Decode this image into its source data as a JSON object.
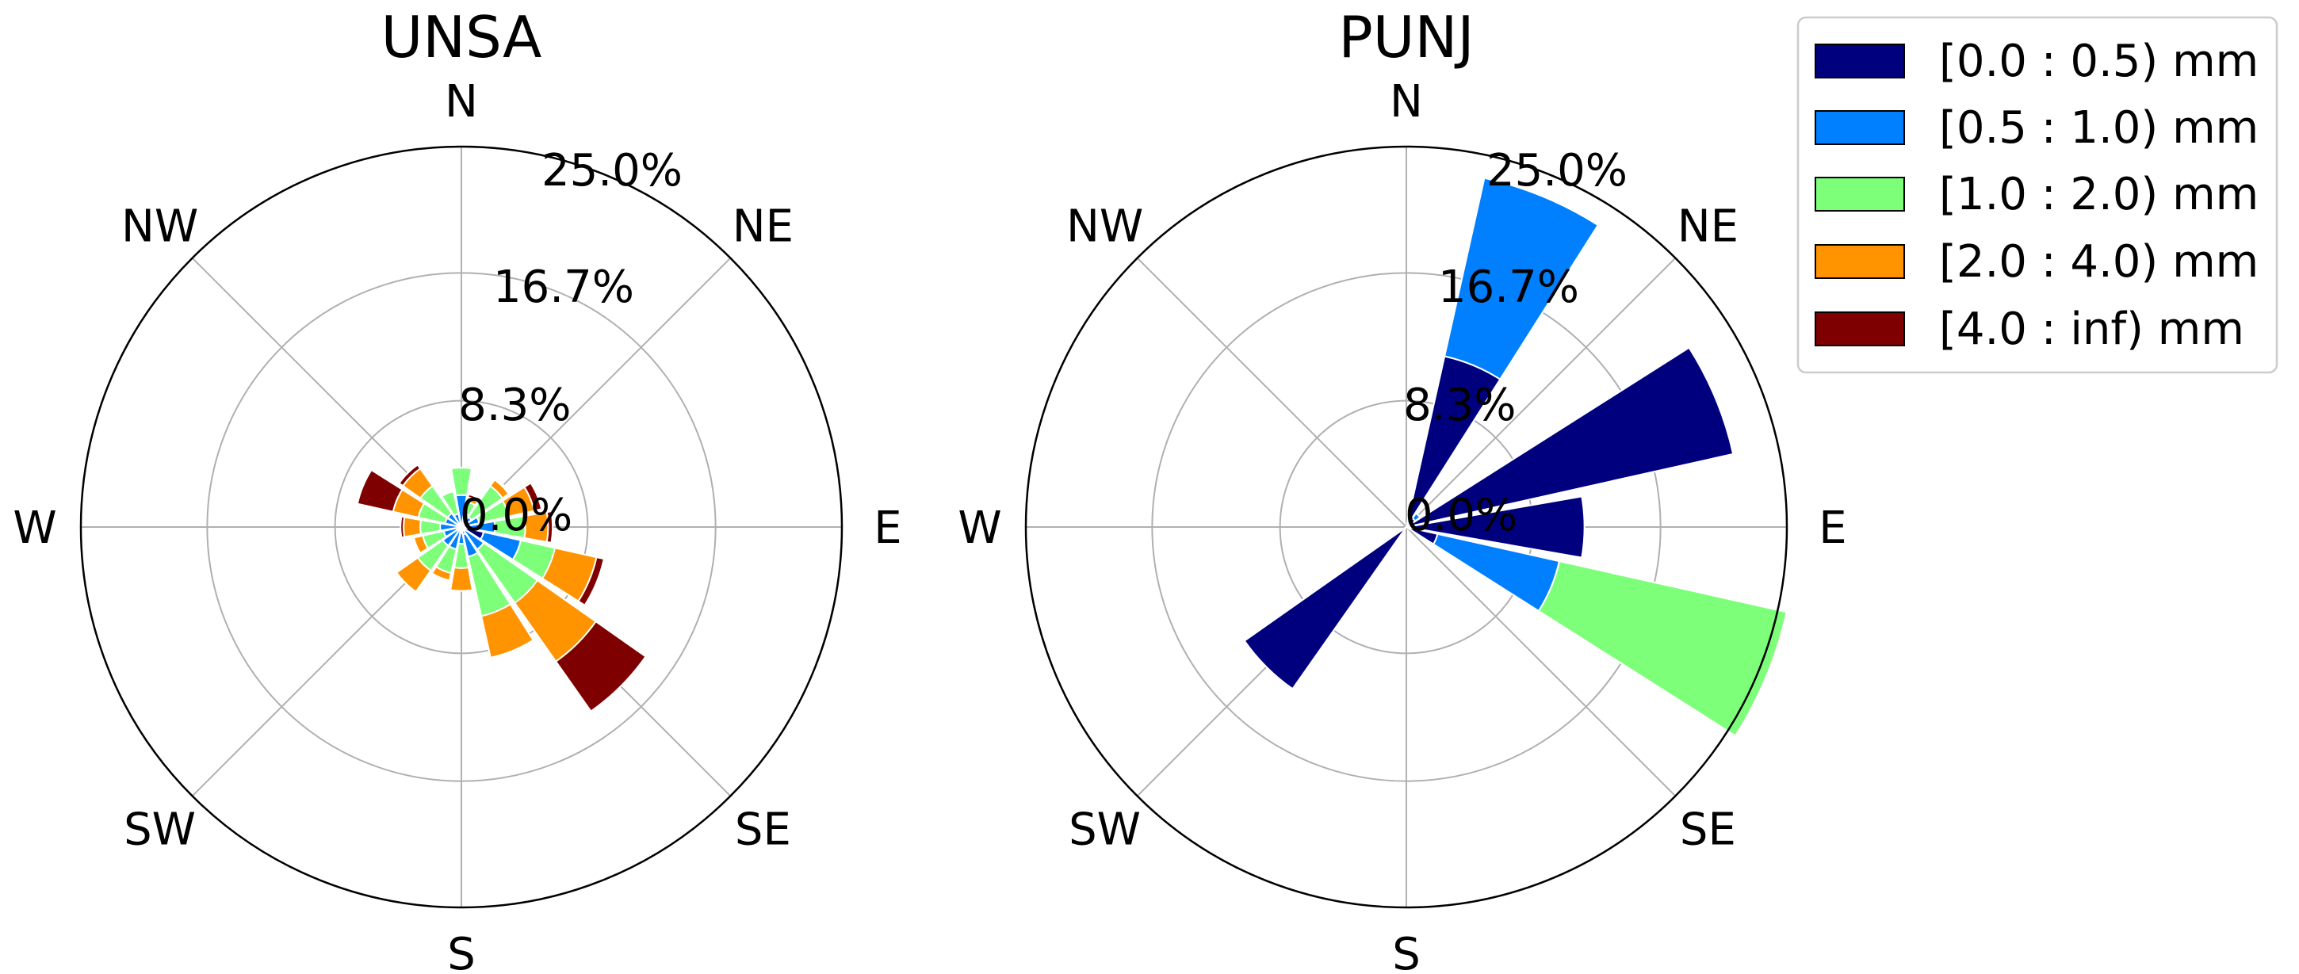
{
  "colors": {
    "bins": [
      "#00007f",
      "#0080ff",
      "#7dff7a",
      "#ff9400",
      "#7f0000"
    ],
    "grid": "#b0b0b0",
    "outline": "#000000"
  },
  "chart_data": [
    {
      "type": "windrose",
      "title": "UNSA",
      "directions": [
        "N",
        "NNE",
        "NE",
        "ENE",
        "E",
        "ESE",
        "SE",
        "SSE",
        "S",
        "SSW",
        "SW",
        "WSW",
        "W",
        "WNW",
        "NW",
        "NNW"
      ],
      "direction_labels": [
        "N",
        "NE",
        "E",
        "SE",
        "S",
        "SW",
        "W",
        "NW"
      ],
      "ring_values": [
        0.0,
        8.3,
        16.7,
        25.0
      ],
      "ring_labels": [
        "0.0%",
        "8.3%",
        "16.7%",
        "25.0%"
      ],
      "rmax": 25.0,
      "series": [
        {
          "name": "[0.0 : 0.5) mm",
          "values": [
            0.1,
            0.1,
            0.2,
            0.2,
            0.2,
            1.5,
            0.3,
            0.5,
            0.4,
            0.3,
            0.3,
            0.2,
            0.2,
            0.1,
            0.1,
            0.1
          ]
        },
        {
          "name": "[0.5 : 1.0) mm",
          "values": [
            2.0,
            0.8,
            0.6,
            1.0,
            2.0,
            2.5,
            1.5,
            1.5,
            0.7,
            1.2,
            1.2,
            1.0,
            1.2,
            1.0,
            1.0,
            0.8
          ]
        },
        {
          "name": "[1.0 : 2.0) mm",
          "values": [
            1.8,
            0.8,
            2.5,
            2.0,
            2.0,
            2.3,
            4.3,
            4.0,
            1.6,
            1.6,
            2.0,
            1.4,
            1.3,
            1.8,
            2.2,
            1.5
          ]
        },
        {
          "name": "[2.0 : 4.0) mm",
          "values": [
            0.0,
            0.3,
            0.5,
            1.7,
            1.5,
            2.8,
            4.7,
            2.8,
            1.5,
            0.5,
            1.7,
            0.6,
            1.1,
            1.7,
            1.4,
            0.0
          ]
        },
        {
          "name": "[4.0 : inf) mm",
          "values": [
            0.0,
            0.2,
            0.1,
            0.5,
            0.3,
            0.5,
            4.0,
            0.0,
            0.0,
            0.0,
            0.0,
            0.0,
            0.2,
            2.4,
            0.3,
            0.0
          ]
        }
      ]
    },
    {
      "type": "windrose",
      "title": "PUNJ",
      "directions": [
        "N",
        "NNE",
        "NE",
        "ENE",
        "E",
        "ESE",
        "SE",
        "SSE",
        "S",
        "SSW",
        "SW",
        "WSW",
        "W",
        "WNW",
        "NW",
        "NNW"
      ],
      "direction_labels": [
        "N",
        "NE",
        "E",
        "SE",
        "S",
        "SW",
        "W",
        "NW"
      ],
      "ring_values": [
        0.0,
        8.3,
        16.7,
        25.0
      ],
      "ring_labels": [
        "0.0%",
        "8.3%",
        "16.7%",
        "25.0%"
      ],
      "rmax": 25.0,
      "series": [
        {
          "name": "[0.0 : 0.5) mm",
          "values": [
            0,
            11.5,
            0.7,
            22.0,
            11.7,
            2.1,
            0,
            0,
            0,
            0,
            13.0,
            0,
            0,
            0,
            0,
            0
          ]
        },
        {
          "name": "[0.5 : 1.0) mm",
          "values": [
            0,
            12.0,
            0.4,
            0,
            0,
            8.2,
            0,
            0,
            0,
            0,
            0,
            0,
            0,
            0,
            0,
            0
          ]
        },
        {
          "name": "[1.0 : 2.0) mm",
          "values": [
            0,
            0,
            0,
            0,
            0,
            15.3,
            0,
            0,
            0,
            0,
            0,
            0,
            0,
            0,
            0,
            0
          ]
        },
        {
          "name": "[2.0 : 4.0) mm",
          "values": [
            0,
            0,
            0,
            0,
            0,
            0,
            0,
            0,
            0,
            0,
            0,
            0,
            0,
            0,
            0,
            0
          ]
        },
        {
          "name": "[4.0 : inf) mm",
          "values": [
            0,
            0,
            0,
            0,
            0,
            0,
            0,
            0,
            0,
            0,
            0,
            0,
            0,
            0,
            0,
            0
          ]
        }
      ]
    }
  ],
  "legend": {
    "entries": [
      "[0.0 : 0.5) mm",
      "[0.5 : 1.0) mm",
      "[1.0 : 2.0) mm",
      "[2.0 : 4.0) mm",
      "[4.0 : inf) mm"
    ]
  }
}
